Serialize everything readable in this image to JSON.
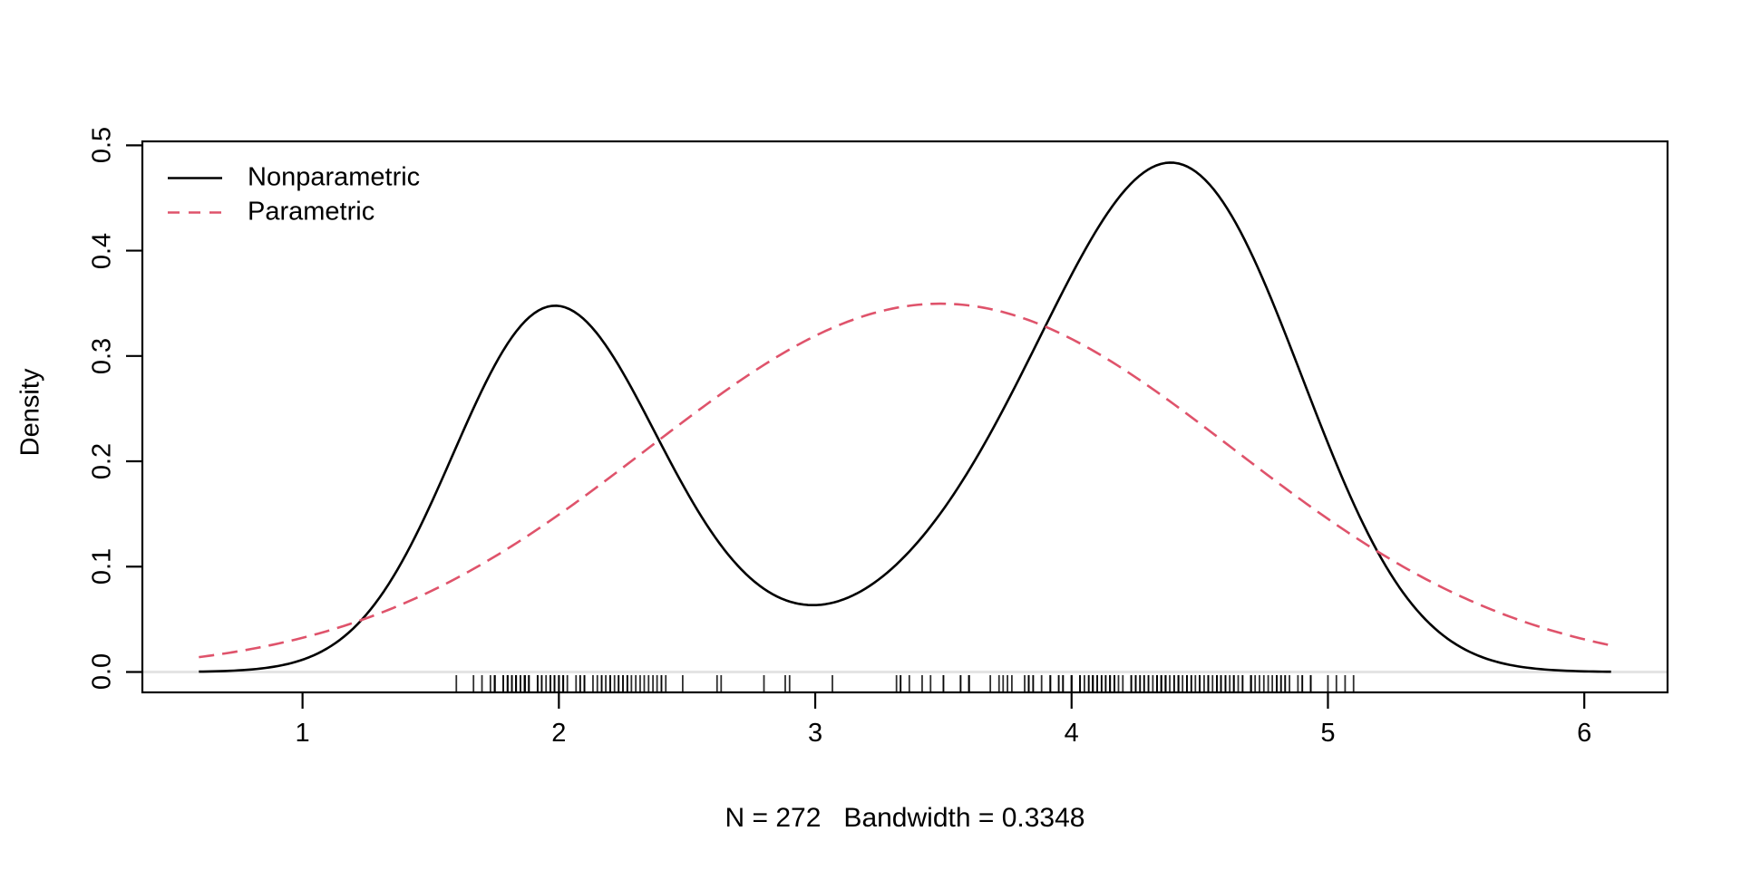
{
  "chart_data": {
    "type": "line",
    "title": "",
    "ylabel": "Density",
    "caption": "N = 272   Bandwidth = 0.3348",
    "n": 272,
    "bandwidth": 0.3348,
    "x_ticks": [
      "1",
      "2",
      "3",
      "4",
      "5",
      "6"
    ],
    "x_tick_values": [
      1,
      2,
      3,
      4,
      5,
      6
    ],
    "y_ticks": [
      "0.0",
      "0.1",
      "0.2",
      "0.3",
      "0.4",
      "0.5"
    ],
    "y_tick_values": [
      0.0,
      0.1,
      0.2,
      0.3,
      0.4,
      0.5
    ],
    "xlim": [
      0.3752,
      6.3248
    ],
    "ylim": [
      -0.019374,
      0.503737
    ],
    "curve_x_range": [
      0.5956,
      6.1044
    ],
    "grid": false,
    "legend_position": "top-left",
    "legend": [
      {
        "label": "Nonparametric",
        "color": "#000000",
        "dash": "solid"
      },
      {
        "label": "Parametric",
        "color": "#DF536B",
        "dash": "dashed"
      }
    ],
    "series": [
      {
        "name": "Nonparametric",
        "kind": "kde",
        "color": "#000000",
        "peaks": [
          {
            "x": 1.98,
            "y": 0.342
          },
          {
            "x": 4.37,
            "y": 0.485
          }
        ],
        "trough": {
          "x": 2.97,
          "y": 0.063
        },
        "data": [
          3.6,
          1.8,
          3.333,
          2.283,
          4.533,
          2.883,
          4.7,
          3.6,
          1.95,
          4.35,
          1.833,
          3.917,
          4.2,
          1.75,
          4.7,
          2.167,
          1.75,
          4.8,
          1.6,
          4.25,
          1.8,
          1.75,
          3.45,
          3.067,
          4.533,
          3.6,
          1.967,
          4.083,
          3.85,
          4.433,
          4.3,
          4.467,
          3.367,
          4.033,
          3.833,
          2.017,
          1.867,
          4.833,
          1.833,
          4.783,
          4.35,
          1.883,
          4.567,
          1.75,
          4.533,
          3.317,
          3.833,
          2.1,
          4.633,
          2.0,
          4.8,
          4.716,
          1.833,
          4.833,
          1.733,
          4.883,
          3.717,
          1.667,
          4.567,
          4.317,
          2.233,
          4.5,
          1.75,
          4.8,
          1.817,
          4.4,
          4.167,
          4.7,
          2.067,
          4.7,
          4.033,
          1.967,
          4.5,
          4.0,
          1.983,
          5.067,
          2.017,
          4.567,
          3.883,
          3.6,
          4.133,
          4.333,
          4.1,
          2.633,
          4.067,
          4.933,
          3.95,
          4.517,
          2.167,
          4.0,
          2.2,
          4.333,
          1.867,
          4.817,
          1.833,
          4.3,
          4.667,
          3.75,
          1.867,
          4.9,
          2.483,
          4.367,
          2.1,
          4.5,
          4.05,
          1.867,
          4.7,
          1.783,
          4.85,
          3.683,
          4.733,
          2.3,
          4.9,
          4.417,
          1.7,
          4.633,
          2.317,
          4.6,
          1.817,
          4.417,
          2.617,
          4.067,
          4.25,
          1.967,
          4.6,
          3.767,
          1.917,
          4.5,
          2.267,
          4.65,
          1.867,
          4.167,
          2.8,
          4.333,
          1.833,
          4.383,
          1.883,
          4.933,
          2.033,
          3.733,
          4.233,
          2.233,
          4.533,
          4.817,
          4.333,
          1.983,
          4.633,
          2.017,
          5.1,
          1.8,
          5.033,
          4.0,
          2.4,
          4.6,
          3.567,
          4.0,
          4.5,
          4.083,
          1.8,
          3.967,
          2.2,
          4.15,
          2.0,
          3.833,
          3.5,
          4.583,
          2.367,
          5.0,
          1.933,
          4.617,
          1.917,
          2.083,
          4.583,
          3.333,
          4.167,
          4.333,
          4.167,
          2.183,
          4.8,
          1.833,
          4.8,
          4.1,
          3.966,
          4.233,
          3.5,
          4.366,
          2.25,
          4.667,
          2.1,
          4.35,
          4.133,
          1.867,
          4.6,
          1.783,
          4.367,
          3.85,
          1.933,
          4.5,
          2.383,
          4.7,
          1.867,
          3.833,
          3.417,
          4.233,
          2.4,
          4.8,
          2.0,
          4.15,
          1.867,
          4.267,
          1.75,
          4.483,
          4.0,
          4.117,
          4.083,
          4.267,
          3.917,
          4.55,
          4.083,
          2.417,
          4.183,
          2.217,
          4.45,
          1.883,
          1.85,
          4.283,
          3.95,
          2.333,
          4.15,
          2.35,
          4.933,
          2.9,
          4.583,
          3.833,
          2.083,
          4.367,
          2.133,
          4.35,
          2.2,
          4.45,
          3.567,
          4.5,
          4.15,
          3.817,
          3.917,
          4.45,
          2.0,
          4.283,
          4.767,
          4.533,
          1.85,
          4.25,
          1.983,
          2.25,
          4.75,
          4.117,
          2.15,
          4.417,
          1.817,
          4.467,
          4.367,
          2.017,
          4.5,
          1.917,
          4.7,
          2.267,
          4.4,
          4.033,
          1.967,
          4.583,
          2.1,
          4.417
        ]
      },
      {
        "name": "Parametric",
        "kind": "normal",
        "color": "#DF536B",
        "mean": 3.488,
        "sd": 1.141,
        "peak": {
          "x": 3.488,
          "y": 0.3496
        }
      }
    ],
    "rug": {
      "present": true,
      "source": "series 0 data"
    },
    "colors": {
      "curve_black": "#000000",
      "curve_red": "#DF536B",
      "baseline_gray": "#E4E4E4",
      "background": "#ffffff"
    }
  }
}
